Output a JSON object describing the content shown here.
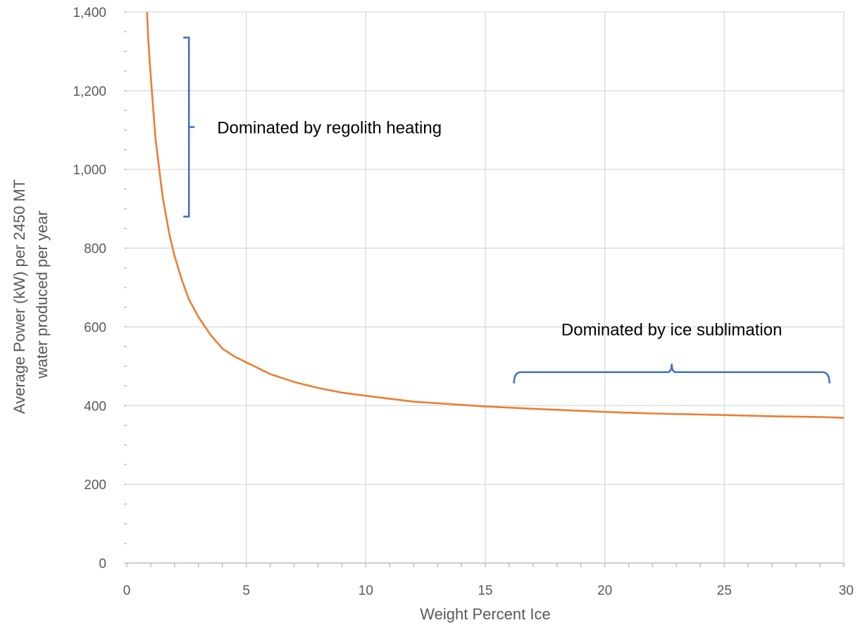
{
  "chart_data": {
    "type": "line",
    "title": "",
    "xlabel": "Weight Percent Ice",
    "ylabel_lines": [
      "Average Power (kW) per 2450 MT",
      "water produced per year"
    ],
    "xlim": [
      0,
      30
    ],
    "ylim": [
      0,
      1400
    ],
    "x_ticks": [
      0,
      5,
      10,
      15,
      20,
      25,
      30
    ],
    "x_tick_labels": [
      "0",
      "5",
      "10",
      "15",
      "20",
      "25",
      "30"
    ],
    "y_ticks": [
      0,
      200,
      400,
      600,
      800,
      1000,
      1200,
      1400
    ],
    "y_tick_labels": [
      "0",
      "200",
      "400",
      "600",
      "800",
      "1,000",
      "1,200",
      "1,400"
    ],
    "grid": true,
    "series_color": "#ed7d31",
    "bracket_color": "#4472c4",
    "series": [
      {
        "x": [
          0.85,
          0.9,
          1.0,
          1.2,
          1.5,
          1.8,
          2.0,
          2.3,
          2.6,
          3.0,
          3.5,
          4.0,
          4.5,
          5.0,
          6.0,
          7.0,
          8.0,
          9.0,
          10.0,
          12.0,
          14.0,
          15.0,
          17.0,
          20.0,
          22.0,
          25.0,
          27.0,
          29.0,
          30.0
        ],
        "y": [
          1400,
          1330,
          1240,
          1080,
          930,
          830,
          780,
          720,
          670,
          625,
          580,
          545,
          525,
          510,
          480,
          460,
          445,
          433,
          425,
          410,
          402,
          398,
          392,
          384,
          380,
          376,
          373,
          371,
          369
        ]
      }
    ],
    "annotations": [
      {
        "text": "Dominated by regolith heating",
        "bracket": "vertical",
        "x": 2.6,
        "y_range": [
          880,
          1335
        ]
      },
      {
        "text": "Dominated by ice sublimation",
        "bracket": "horizontal",
        "y": 485,
        "x_range": [
          16.2,
          29.4
        ]
      }
    ]
  }
}
